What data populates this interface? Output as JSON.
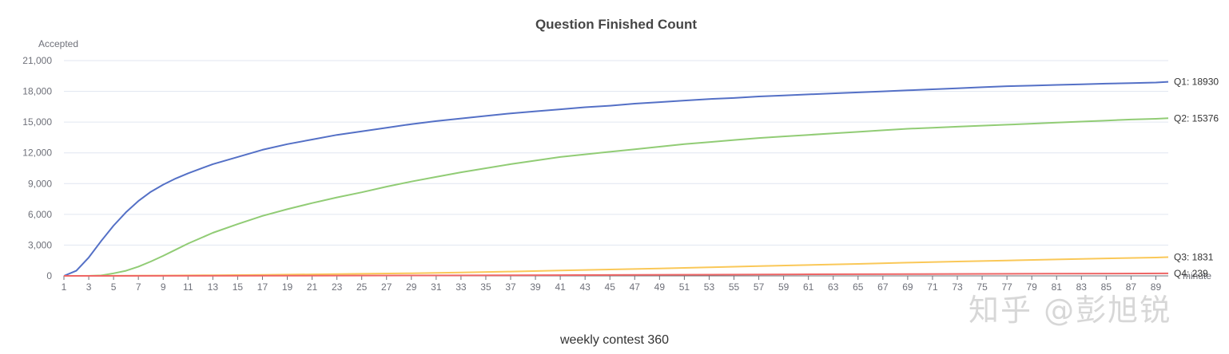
{
  "chart_data": {
    "type": "line",
    "title": "Question Finished Count",
    "ylabel": "Accepted",
    "xlabel": "minute",
    "ylim": [
      0,
      21000
    ],
    "yticks": [
      "0",
      "3,000",
      "6,000",
      "9,000",
      "12,000",
      "15,000",
      "18,000",
      "21,000"
    ],
    "xlim": [
      1,
      90
    ],
    "xticks": [
      "1",
      "3",
      "5",
      "7",
      "9",
      "11",
      "13",
      "15",
      "17",
      "19",
      "21",
      "23",
      "25",
      "27",
      "29",
      "31",
      "33",
      "35",
      "37",
      "39",
      "41",
      "43",
      "45",
      "47",
      "49",
      "51",
      "53",
      "55",
      "57",
      "59",
      "61",
      "63",
      "65",
      "67",
      "69",
      "71",
      "73",
      "75",
      "77",
      "79",
      "81",
      "83",
      "85",
      "87",
      "89"
    ],
    "grid": true,
    "series": [
      {
        "name": "Q1",
        "color": "#5470c6",
        "end_label": "Q1: 18930",
        "points": [
          [
            1,
            0
          ],
          [
            2,
            500
          ],
          [
            3,
            1800
          ],
          [
            4,
            3400
          ],
          [
            5,
            4900
          ],
          [
            6,
            6200
          ],
          [
            7,
            7300
          ],
          [
            8,
            8200
          ],
          [
            9,
            8900
          ],
          [
            10,
            9500
          ],
          [
            11,
            10000
          ],
          [
            13,
            10900
          ],
          [
            15,
            11600
          ],
          [
            17,
            12300
          ],
          [
            19,
            12850
          ],
          [
            21,
            13300
          ],
          [
            23,
            13750
          ],
          [
            25,
            14100
          ],
          [
            27,
            14450
          ],
          [
            29,
            14800
          ],
          [
            31,
            15100
          ],
          [
            33,
            15350
          ],
          [
            35,
            15600
          ],
          [
            37,
            15850
          ],
          [
            39,
            16050
          ],
          [
            41,
            16250
          ],
          [
            43,
            16450
          ],
          [
            45,
            16600
          ],
          [
            47,
            16800
          ],
          [
            49,
            16950
          ],
          [
            51,
            17100
          ],
          [
            53,
            17250
          ],
          [
            55,
            17350
          ],
          [
            57,
            17500
          ],
          [
            59,
            17600
          ],
          [
            61,
            17700
          ],
          [
            63,
            17800
          ],
          [
            65,
            17900
          ],
          [
            67,
            18000
          ],
          [
            69,
            18100
          ],
          [
            71,
            18200
          ],
          [
            73,
            18300
          ],
          [
            75,
            18400
          ],
          [
            77,
            18500
          ],
          [
            79,
            18560
          ],
          [
            81,
            18630
          ],
          [
            83,
            18690
          ],
          [
            85,
            18750
          ],
          [
            87,
            18800
          ],
          [
            89,
            18860
          ],
          [
            90,
            18930
          ]
        ]
      },
      {
        "name": "Q2",
        "color": "#91cc75",
        "end_label": "Q2: 15376",
        "points": [
          [
            1,
            0
          ],
          [
            3,
            0
          ],
          [
            4,
            50
          ],
          [
            5,
            250
          ],
          [
            6,
            500
          ],
          [
            7,
            900
          ],
          [
            8,
            1400
          ],
          [
            9,
            1950
          ],
          [
            10,
            2550
          ],
          [
            11,
            3150
          ],
          [
            13,
            4200
          ],
          [
            15,
            5050
          ],
          [
            17,
            5850
          ],
          [
            19,
            6500
          ],
          [
            21,
            7100
          ],
          [
            23,
            7650
          ],
          [
            25,
            8150
          ],
          [
            27,
            8700
          ],
          [
            29,
            9200
          ],
          [
            31,
            9650
          ],
          [
            33,
            10100
          ],
          [
            35,
            10500
          ],
          [
            37,
            10900
          ],
          [
            39,
            11250
          ],
          [
            41,
            11600
          ],
          [
            43,
            11850
          ],
          [
            45,
            12100
          ],
          [
            47,
            12350
          ],
          [
            49,
            12600
          ],
          [
            51,
            12850
          ],
          [
            53,
            13050
          ],
          [
            55,
            13250
          ],
          [
            57,
            13450
          ],
          [
            59,
            13600
          ],
          [
            61,
            13750
          ],
          [
            63,
            13900
          ],
          [
            65,
            14050
          ],
          [
            67,
            14200
          ],
          [
            69,
            14350
          ],
          [
            71,
            14450
          ],
          [
            73,
            14550
          ],
          [
            75,
            14650
          ],
          [
            77,
            14750
          ],
          [
            79,
            14850
          ],
          [
            81,
            14950
          ],
          [
            83,
            15050
          ],
          [
            85,
            15150
          ],
          [
            87,
            15250
          ],
          [
            89,
            15320
          ],
          [
            90,
            15376
          ]
        ]
      },
      {
        "name": "Q3",
        "color": "#fac858",
        "end_label": "Q3: 1831",
        "points": [
          [
            1,
            0
          ],
          [
            5,
            10
          ],
          [
            9,
            30
          ],
          [
            13,
            60
          ],
          [
            17,
            100
          ],
          [
            21,
            150
          ],
          [
            25,
            200
          ],
          [
            29,
            260
          ],
          [
            33,
            330
          ],
          [
            37,
            420
          ],
          [
            41,
            520
          ],
          [
            45,
            620
          ],
          [
            49,
            720
          ],
          [
            53,
            830
          ],
          [
            57,
            950
          ],
          [
            61,
            1060
          ],
          [
            65,
            1170
          ],
          [
            69,
            1290
          ],
          [
            73,
            1400
          ],
          [
            77,
            1500
          ],
          [
            81,
            1600
          ],
          [
            85,
            1700
          ],
          [
            89,
            1790
          ],
          [
            90,
            1831
          ]
        ]
      },
      {
        "name": "Q4",
        "color": "#ee6666",
        "end_label": "Q4: 239",
        "points": [
          [
            1,
            0
          ],
          [
            10,
            5
          ],
          [
            20,
            20
          ],
          [
            30,
            40
          ],
          [
            40,
            70
          ],
          [
            50,
            110
          ],
          [
            60,
            150
          ],
          [
            70,
            180
          ],
          [
            80,
            210
          ],
          [
            90,
            239
          ]
        ]
      }
    ]
  },
  "footer": "weekly contest 360",
  "watermark": "知乎 @彭旭锐"
}
